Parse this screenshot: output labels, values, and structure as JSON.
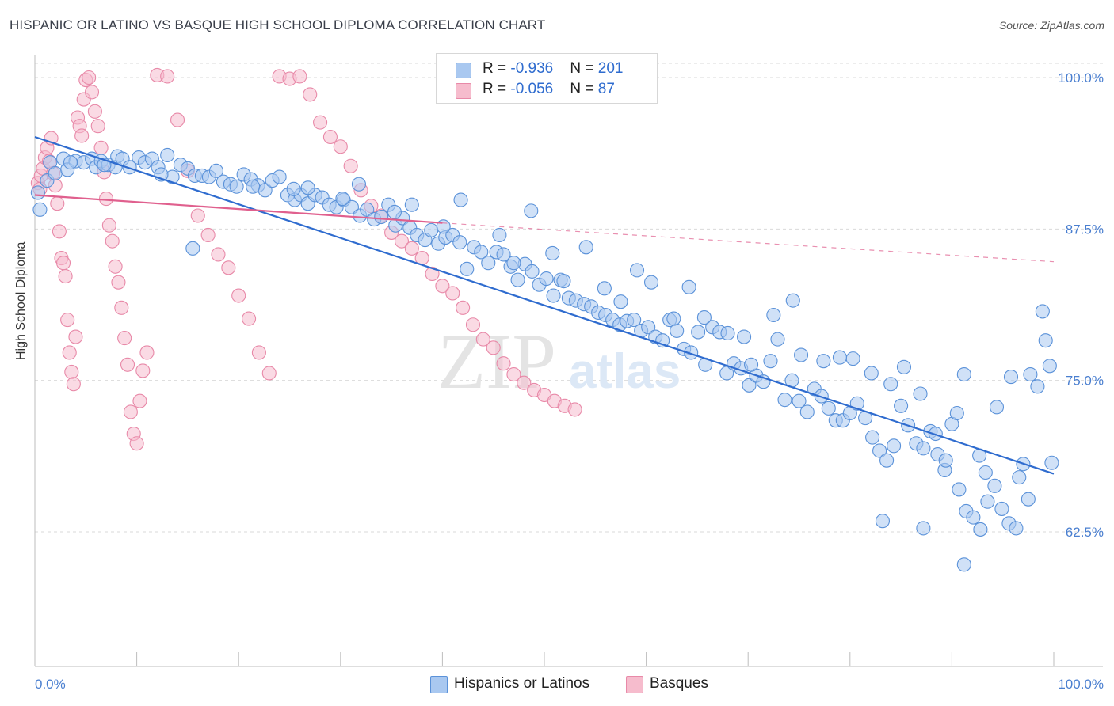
{
  "title": "HISPANIC OR LATINO VS BASQUE HIGH SCHOOL DIPLOMA CORRELATION CHART",
  "source": "Source: ZipAtlas.com",
  "legend": {
    "rows": [
      {
        "r_label": "R = ",
        "r_value": "-0.936",
        "n_label": "N = ",
        "n_value": "201"
      },
      {
        "r_label": "R = ",
        "r_value": "-0.056",
        "n_label": "N = ",
        "n_value": "87"
      }
    ]
  },
  "bottom_legend": [
    "Hispanics or Latinos",
    "Basques"
  ],
  "colors": {
    "blue_fill": "#a9c8f0",
    "blue_stroke": "#5b92d9",
    "blue_line": "#2f6ccf",
    "pink_fill": "#f6bccd",
    "pink_stroke": "#e889a8",
    "pink_line": "#e0608e",
    "tick_label": "#4a7fd0",
    "grid": "#d9d9d9"
  },
  "chart_data": {
    "type": "scatter",
    "title": "HISPANIC OR LATINO VS BASQUE HIGH SCHOOL DIPLOMA CORRELATION CHART",
    "xlabel": "",
    "ylabel": "High School Diploma",
    "x_tick_labels": [
      "0.0%",
      "100.0%"
    ],
    "y_tick_labels": [
      "100.0%",
      "87.5%",
      "75.0%",
      "62.5%"
    ],
    "y_ticks": [
      100.0,
      87.5,
      75.0,
      62.5
    ],
    "xlim": [
      0,
      100
    ],
    "ylim": [
      51.5,
      102
    ],
    "grid": true,
    "watermark": "ZIPatlas",
    "series": [
      {
        "name": "Hispanics or Latinos",
        "R": -0.936,
        "N": 201,
        "trend": {
          "x": [
            0,
            100
          ],
          "y": [
            95.1,
            67.3
          ]
        },
        "points": [
          [
            0.3,
            90.5
          ],
          [
            0.5,
            89.1
          ],
          [
            1.2,
            91.5
          ],
          [
            1.5,
            93
          ],
          [
            2.0,
            92.1
          ],
          [
            2.8,
            93.3
          ],
          [
            3.2,
            92.4
          ],
          [
            4.0,
            93.1
          ],
          [
            4.8,
            93.0
          ],
          [
            5.6,
            93.3
          ],
          [
            6.0,
            92.6
          ],
          [
            6.5,
            93.1
          ],
          [
            7.2,
            92.8
          ],
          [
            7.9,
            92.6
          ],
          [
            8.1,
            93.5
          ],
          [
            8.6,
            93.3
          ],
          [
            9.3,
            92.6
          ],
          [
            10.2,
            93.4
          ],
          [
            10.8,
            93.0
          ],
          [
            11.5,
            93.3
          ],
          [
            12.1,
            92.6
          ],
          [
            13.0,
            93.6
          ],
          [
            13.5,
            91.8
          ],
          [
            14.3,
            92.8
          ],
          [
            15.0,
            92.5
          ],
          [
            15.7,
            91.9
          ],
          [
            16.4,
            91.9
          ],
          [
            17.1,
            91.8
          ],
          [
            17.8,
            92.3
          ],
          [
            18.5,
            91.4
          ],
          [
            19.2,
            91.2
          ],
          [
            19.8,
            91.0
          ],
          [
            20.5,
            92.0
          ],
          [
            21.2,
            91.6
          ],
          [
            21.9,
            91.1
          ],
          [
            22.6,
            90.7
          ],
          [
            23.3,
            91.5
          ],
          [
            24.0,
            91.8
          ],
          [
            24.8,
            90.3
          ],
          [
            25.5,
            89.9
          ],
          [
            26.1,
            90.3
          ],
          [
            26.8,
            89.6
          ],
          [
            27.5,
            90.3
          ],
          [
            28.2,
            90.1
          ],
          [
            28.9,
            89.5
          ],
          [
            29.6,
            89.3
          ],
          [
            30.3,
            89.9
          ],
          [
            31.1,
            89.3
          ],
          [
            31.9,
            88.6
          ],
          [
            32.6,
            89.1
          ],
          [
            33.3,
            88.3
          ],
          [
            34.0,
            88.5
          ],
          [
            34.7,
            89.5
          ],
          [
            35.4,
            87.8
          ],
          [
            36.1,
            88.4
          ],
          [
            36.8,
            87.6
          ],
          [
            37.5,
            87.0
          ],
          [
            38.3,
            86.6
          ],
          [
            38.9,
            87.4
          ],
          [
            39.6,
            86.3
          ],
          [
            40.3,
            86.8
          ],
          [
            41.0,
            87.0
          ],
          [
            41.7,
            86.4
          ],
          [
            42.4,
            84.2
          ],
          [
            43.1,
            86.0
          ],
          [
            43.8,
            85.6
          ],
          [
            44.5,
            84.7
          ],
          [
            45.3,
            85.6
          ],
          [
            46.0,
            85.4
          ],
          [
            46.7,
            84.4
          ],
          [
            47.4,
            83.3
          ],
          [
            48.1,
            84.6
          ],
          [
            48.8,
            84.0
          ],
          [
            49.5,
            82.9
          ],
          [
            50.2,
            83.4
          ],
          [
            50.9,
            82.0
          ],
          [
            51.6,
            83.3
          ],
          [
            52.4,
            81.8
          ],
          [
            53.1,
            81.6
          ],
          [
            53.9,
            81.3
          ],
          [
            54.6,
            81.1
          ],
          [
            55.3,
            80.6
          ],
          [
            56.0,
            80.4
          ],
          [
            56.7,
            80.0
          ],
          [
            57.4,
            79.6
          ],
          [
            58.1,
            79.9
          ],
          [
            58.8,
            80.0
          ],
          [
            59.5,
            79.1
          ],
          [
            60.2,
            79.4
          ],
          [
            60.9,
            78.6
          ],
          [
            61.6,
            78.3
          ],
          [
            62.3,
            80.0
          ],
          [
            63.0,
            79.1
          ],
          [
            63.7,
            77.6
          ],
          [
            64.4,
            77.3
          ],
          [
            65.1,
            79.0
          ],
          [
            65.8,
            76.3
          ],
          [
            66.5,
            79.4
          ],
          [
            67.2,
            79.0
          ],
          [
            67.9,
            75.6
          ],
          [
            68.6,
            76.4
          ],
          [
            69.3,
            76.0
          ],
          [
            70.1,
            74.6
          ],
          [
            70.8,
            75.4
          ],
          [
            71.5,
            74.9
          ],
          [
            72.2,
            76.6
          ],
          [
            72.9,
            78.4
          ],
          [
            73.6,
            73.4
          ],
          [
            74.3,
            75.0
          ],
          [
            75.0,
            73.3
          ],
          [
            75.8,
            72.4
          ],
          [
            76.5,
            74.3
          ],
          [
            77.2,
            73.7
          ],
          [
            77.9,
            72.7
          ],
          [
            78.6,
            71.7
          ],
          [
            79.3,
            71.7
          ],
          [
            80.0,
            72.3
          ],
          [
            80.7,
            73.1
          ],
          [
            81.5,
            71.9
          ],
          [
            82.2,
            70.3
          ],
          [
            82.9,
            69.2
          ],
          [
            83.6,
            68.4
          ],
          [
            84.3,
            69.6
          ],
          [
            85.0,
            72.9
          ],
          [
            85.7,
            71.3
          ],
          [
            86.5,
            69.8
          ],
          [
            87.2,
            69.4
          ],
          [
            87.9,
            70.8
          ],
          [
            88.6,
            68.9
          ],
          [
            89.3,
            67.6
          ],
          [
            90.0,
            71.4
          ],
          [
            90.7,
            66.0
          ],
          [
            91.4,
            64.2
          ],
          [
            92.1,
            63.7
          ],
          [
            92.8,
            62.7
          ],
          [
            93.5,
            65.0
          ],
          [
            94.2,
            66.3
          ],
          [
            94.9,
            64.4
          ],
          [
            95.6,
            63.2
          ],
          [
            96.3,
            62.8
          ],
          [
            97.0,
            68.1
          ],
          [
            97.7,
            75.5
          ],
          [
            98.4,
            74.5
          ],
          [
            98.9,
            80.7
          ],
          [
            99.2,
            78.3
          ],
          [
            99.6,
            76.2
          ],
          [
            99.8,
            68.2
          ],
          [
            15.5,
            85.9
          ],
          [
            21.4,
            91.0
          ],
          [
            26.8,
            90.9
          ],
          [
            31.8,
            91.2
          ],
          [
            37.0,
            89.5
          ],
          [
            41.8,
            89.9
          ],
          [
            47.0,
            84.7
          ],
          [
            51.9,
            83.2
          ],
          [
            57.5,
            81.5
          ],
          [
            62.7,
            80.1
          ],
          [
            68.0,
            78.9
          ],
          [
            72.5,
            80.4
          ],
          [
            77.4,
            76.6
          ],
          [
            82.1,
            75.6
          ],
          [
            86.9,
            73.9
          ],
          [
            91.2,
            75.5
          ],
          [
            95.8,
            75.3
          ],
          [
            89.4,
            68.4
          ],
          [
            93.3,
            67.4
          ],
          [
            97.5,
            65.2
          ],
          [
            25.4,
            90.8
          ],
          [
            30.2,
            90.0
          ],
          [
            35.3,
            88.9
          ],
          [
            40.1,
            87.7
          ],
          [
            45.6,
            87.0
          ],
          [
            50.8,
            85.5
          ],
          [
            55.9,
            82.6
          ],
          [
            60.5,
            83.1
          ],
          [
            65.7,
            80.2
          ],
          [
            70.3,
            76.3
          ],
          [
            75.2,
            77.1
          ],
          [
            80.3,
            76.8
          ],
          [
            85.3,
            76.1
          ],
          [
            90.5,
            72.3
          ],
          [
            94.4,
            72.8
          ],
          [
            48.7,
            89.0
          ],
          [
            54.1,
            86.0
          ],
          [
            59.1,
            84.1
          ],
          [
            64.2,
            82.7
          ],
          [
            69.6,
            78.6
          ],
          [
            74.4,
            81.6
          ],
          [
            79.0,
            76.9
          ],
          [
            84.0,
            74.7
          ],
          [
            88.4,
            70.6
          ],
          [
            92.7,
            68.8
          ],
          [
            96.6,
            67.0
          ],
          [
            83.2,
            63.4
          ],
          [
            87.2,
            62.8
          ],
          [
            91.2,
            59.8
          ],
          [
            6.8,
            92.8
          ],
          [
            3.5,
            93.0
          ],
          [
            12.4,
            92.0
          ]
        ]
      },
      {
        "name": "Basques",
        "R": -0.056,
        "N": 87,
        "trend": {
          "x": [
            0,
            40
          ],
          "y": [
            90.3,
            88.0
          ],
          "dashed_x": [
            40,
            100
          ],
          "dashed_y": [
            88.0,
            84.8
          ]
        },
        "points": [
          [
            0.3,
            91.3
          ],
          [
            0.5,
            90.8
          ],
          [
            0.6,
            91.9
          ],
          [
            0.8,
            92.5
          ],
          [
            1.0,
            93.4
          ],
          [
            1.2,
            94.2
          ],
          [
            1.4,
            93.1
          ],
          [
            1.6,
            95.0
          ],
          [
            1.8,
            92.1
          ],
          [
            2.0,
            91.1
          ],
          [
            2.2,
            89.6
          ],
          [
            2.4,
            87.3
          ],
          [
            2.6,
            85.1
          ],
          [
            2.8,
            84.7
          ],
          [
            3.0,
            83.6
          ],
          [
            3.2,
            80.0
          ],
          [
            3.4,
            77.3
          ],
          [
            3.6,
            75.7
          ],
          [
            3.8,
            74.7
          ],
          [
            4.0,
            78.6
          ],
          [
            4.2,
            96.7
          ],
          [
            4.4,
            96.0
          ],
          [
            4.6,
            95.2
          ],
          [
            4.8,
            98.2
          ],
          [
            5.0,
            99.8
          ],
          [
            5.3,
            100.0
          ],
          [
            5.6,
            98.8
          ],
          [
            5.9,
            97.2
          ],
          [
            6.2,
            96.0
          ],
          [
            6.5,
            94.2
          ],
          [
            6.8,
            92.2
          ],
          [
            7.0,
            90.0
          ],
          [
            7.3,
            87.8
          ],
          [
            7.6,
            86.5
          ],
          [
            7.9,
            84.4
          ],
          [
            8.2,
            83.1
          ],
          [
            8.5,
            81.0
          ],
          [
            8.8,
            78.5
          ],
          [
            9.1,
            76.3
          ],
          [
            9.4,
            72.4
          ],
          [
            9.7,
            70.6
          ],
          [
            10.0,
            69.8
          ],
          [
            10.3,
            73.3
          ],
          [
            10.6,
            75.8
          ],
          [
            11.0,
            77.3
          ],
          [
            12.0,
            100.2
          ],
          [
            13.0,
            100.1
          ],
          [
            14.0,
            96.5
          ],
          [
            15.0,
            92.3
          ],
          [
            16.0,
            88.6
          ],
          [
            17.0,
            87.0
          ],
          [
            18.0,
            85.4
          ],
          [
            19.0,
            84.3
          ],
          [
            20.0,
            82.0
          ],
          [
            21.0,
            80.1
          ],
          [
            22.0,
            77.3
          ],
          [
            23.0,
            75.6
          ],
          [
            24.0,
            100.1
          ],
          [
            25.0,
            99.9
          ],
          [
            26.0,
            100.1
          ],
          [
            27.0,
            98.6
          ],
          [
            28.0,
            96.3
          ],
          [
            29.0,
            95.1
          ],
          [
            30.0,
            94.3
          ],
          [
            31.0,
            92.7
          ],
          [
            32.0,
            90.7
          ],
          [
            33.0,
            89.4
          ],
          [
            34.0,
            88.6
          ],
          [
            35.0,
            87.2
          ],
          [
            36.0,
            86.5
          ],
          [
            37.0,
            85.9
          ],
          [
            38.0,
            85.1
          ],
          [
            39.0,
            83.8
          ],
          [
            40.0,
            82.8
          ],
          [
            41.0,
            82.2
          ],
          [
            42.0,
            81.0
          ],
          [
            43.0,
            79.6
          ],
          [
            44.0,
            78.4
          ],
          [
            45.0,
            77.7
          ],
          [
            46.0,
            76.4
          ],
          [
            47.0,
            75.5
          ],
          [
            48.0,
            74.8
          ],
          [
            49.0,
            74.2
          ],
          [
            50.0,
            73.8
          ],
          [
            51.0,
            73.3
          ],
          [
            52.0,
            72.9
          ],
          [
            53.0,
            72.6
          ]
        ]
      }
    ]
  }
}
